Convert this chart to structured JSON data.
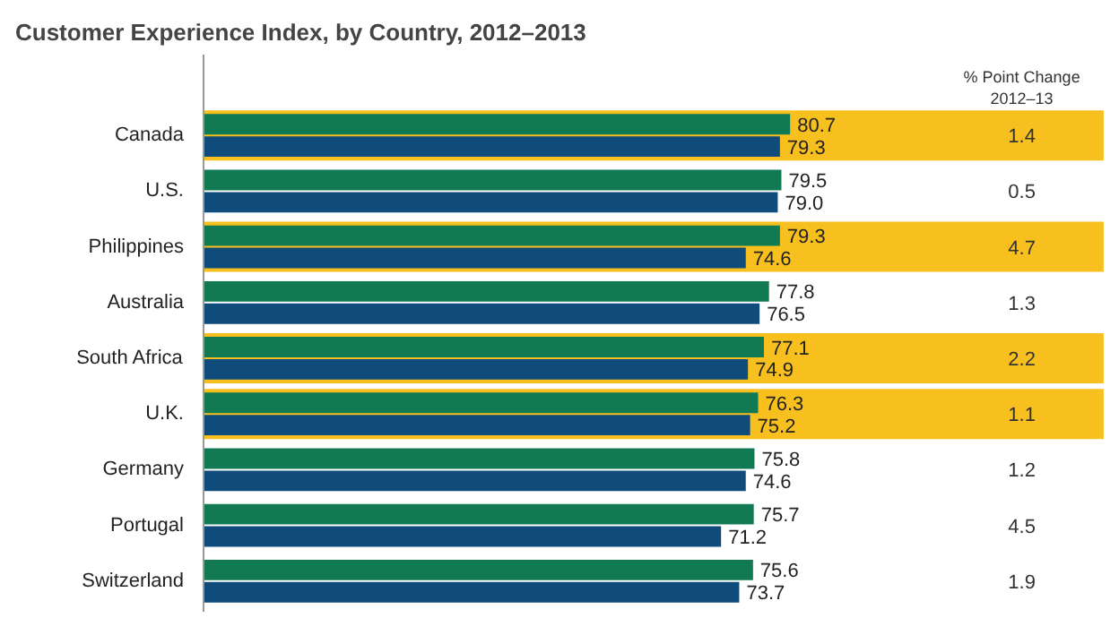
{
  "chart_data": {
    "type": "bar",
    "orientation": "horizontal",
    "title": "Customer Experience Index, by Country, 2012–2013",
    "categories": [
      "Canada",
      "U.S.",
      "Philippines",
      "Australia",
      "South Africa",
      "U.K.",
      "Germany",
      "Portugal",
      "Switzerland"
    ],
    "series": [
      {
        "color": "#117a52",
        "values": [
          80.7,
          79.5,
          79.3,
          77.8,
          77.1,
          76.3,
          75.8,
          75.7,
          75.6
        ],
        "value_labels": [
          "80.7",
          "79.5",
          "79.3",
          "77.8",
          "77.1",
          "76.3",
          "75.8",
          "75.7",
          "75.6"
        ]
      },
      {
        "color": "#0f4c7c",
        "values": [
          79.3,
          79.0,
          74.6,
          76.5,
          74.9,
          75.2,
          74.6,
          71.2,
          73.7
        ],
        "value_labels": [
          "79.3",
          "79.0",
          "74.6",
          "76.5",
          "74.9",
          "75.2",
          "74.6",
          "71.2",
          "73.7"
        ]
      }
    ],
    "tick_labels": "y",
    "grid": false,
    "bands": [
      {
        "axis": "y",
        "from": "Canada",
        "to": "Canada",
        "color": "#f8c01e"
      },
      {
        "axis": "y",
        "from": "Philippines",
        "to": "Philippines",
        "color": "#f8c01e"
      },
      {
        "axis": "y",
        "from": "South Africa",
        "to": "South Africa",
        "color": "#f8c01e"
      },
      {
        "axis": "y",
        "from": "U.K.",
        "to": "U.K.",
        "color": "#f8c01e"
      }
    ],
    "annotations": [
      "% Point Change\n2012–13",
      "1.4",
      "0.5",
      "4.7",
      "1.3",
      "2.2",
      "1.1",
      "1.2",
      "4.5",
      "1.9"
    ]
  }
}
